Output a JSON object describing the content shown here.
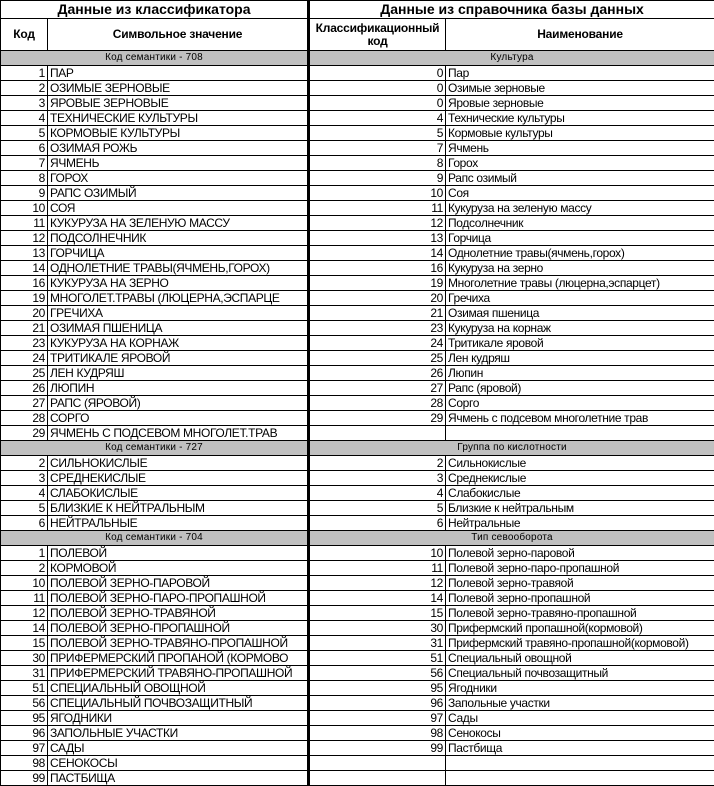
{
  "header": {
    "left_title": "Данные из классификатора",
    "right_title": "Данные из справочника базы данных",
    "col_code": "Код",
    "col_symbolic": "Символьное значение",
    "col_class_code": "Классификационный код",
    "col_name": "Наименование"
  },
  "colors": {
    "section_bg": "#c0c0c0",
    "border": "#000000"
  },
  "sections": [
    {
      "left_title": "Код семантики - 708",
      "right_title": "Культура",
      "rows": [
        [
          "1",
          "ПАР",
          "0",
          "Пар"
        ],
        [
          "2",
          "ОЗИМЫЕ ЗЕРНОВЫЕ",
          "0",
          "Озимые зерновые"
        ],
        [
          "3",
          "ЯРОВЫЕ ЗЕРНОВЫЕ",
          "0",
          "Яровые зерновые"
        ],
        [
          "4",
          "ТЕХНИЧЕСКИЕ КУЛЬТУРЫ",
          "4",
          "Технические культуры"
        ],
        [
          "5",
          "КОРМОВЫЕ КУЛЬТУРЫ",
          "5",
          "Кормовые культуры"
        ],
        [
          "6",
          "ОЗИМАЯ РОЖЬ",
          "7",
          "Ячмень"
        ],
        [
          "7",
          "ЯЧМЕНЬ",
          "8",
          "Горох"
        ],
        [
          "8",
          "ГОРОХ",
          "9",
          "Рапс озимый"
        ],
        [
          "9",
          "РАПС ОЗИМЫЙ",
          "10",
          "Соя"
        ],
        [
          "10",
          "СОЯ",
          "11",
          "Кукуруза на зеленую массу"
        ],
        [
          "11",
          "КУКУРУЗА НА ЗЕЛЕНУЮ МАССУ",
          "12",
          "Подсолнечник"
        ],
        [
          "12",
          "ПОДСОЛНЕЧНИК",
          "13",
          "Горчица"
        ],
        [
          "13",
          "ГОРЧИЦА",
          "14",
          "Однолетние травы(ячмень,горох)"
        ],
        [
          "14",
          "ОДНОЛЕТНИЕ ТРАВЫ(ЯЧМЕНЬ,ГОРОХ)",
          "16",
          "Кукуруза на зерно"
        ],
        [
          "16",
          "КУКУРУЗА НА ЗЕРНО",
          "19",
          "Многолетние травы (люцерна,эспарцет)"
        ],
        [
          "19",
          "МНОГОЛЕТ.ТРАВЫ (ЛЮЦЕРНА,ЭСПАРЦЕ",
          "20",
          "Гречиха"
        ],
        [
          "20",
          "ГРЕЧИХА",
          "21",
          "Озимая пшеница"
        ],
        [
          "21",
          "ОЗИМАЯ ПШЕНИЦА",
          "23",
          "Кукуруза на корнаж"
        ],
        [
          "23",
          "КУКУРУЗА НА КОРНАЖ",
          "24",
          "Тритикале яровой"
        ],
        [
          "24",
          "ТРИТИКАЛЕ ЯРОВОЙ",
          "25",
          "Лен кудряш"
        ],
        [
          "25",
          "ЛЕН КУДРЯШ",
          "26",
          "Люпин"
        ],
        [
          "26",
          "ЛЮПИН",
          "27",
          "Рапс (яровой)"
        ],
        [
          "27",
          "РАПС (ЯРОВОЙ)",
          "28",
          "Сорго"
        ],
        [
          "28",
          "СОРГО",
          "29",
          "Ячмень с подсевом многолетние трав"
        ],
        [
          "29",
          "ЯЧМЕНЬ С ПОДСЕВОМ МНОГОЛЕТ.ТРАВ",
          "",
          ""
        ]
      ]
    },
    {
      "left_title": "Код семантики - 727",
      "right_title": "Группа по кислотности",
      "rows": [
        [
          "2",
          "СИЛЬНОКИСЛЫЕ",
          "2",
          "Сильнокислые"
        ],
        [
          "3",
          "СРЕДНЕКИСЛЫЕ",
          "3",
          "Среднекислые"
        ],
        [
          "4",
          "СЛАБОКИСЛЫЕ",
          "4",
          "Слабокислые"
        ],
        [
          "5",
          "БЛИЗКИЕ К НЕЙТРАЛЬНЫМ",
          "5",
          "Близкие к нейтральным"
        ],
        [
          "6",
          "НЕЙТРАЛЬНЫЕ",
          "6",
          "Нейтральные"
        ]
      ]
    },
    {
      "left_title": "Код семантики - 704",
      "right_title": "Тип севооборота",
      "rows": [
        [
          "1",
          "ПОЛЕВОЙ",
          "10",
          "Полевой зерно-паровой"
        ],
        [
          "2",
          "КОРМОВОЙ",
          "11",
          "Полевой зерно-паро-пропашной"
        ],
        [
          "10",
          "ПОЛЕВОЙ ЗЕРНО-ПАРОВОЙ",
          "12",
          "Полевой зерно-травяой"
        ],
        [
          "11",
          "ПОЛЕВОЙ ЗЕРНО-ПАРО-ПРОПАШНОЙ",
          "14",
          "Полевой зерно-пропашной"
        ],
        [
          "12",
          "ПОЛЕВОЙ ЗЕРНО-ТРАВЯНОЙ",
          "15",
          "Полевой зерно-травяно-пропашной"
        ],
        [
          "14",
          "ПОЛЕВОЙ ЗЕРНО-ПРОПАШНОЙ",
          "30",
          "Прифермский пропашной(кормовой)"
        ],
        [
          "15",
          "ПОЛЕВОЙ ЗЕРНО-ТРАВЯНО-ПРОПАШНОЙ",
          "31",
          "Прифермский травяно-пропашной(кормовой)"
        ],
        [
          "30",
          "ПРИФЕРМЕРСКИЙ ПРОПАНОЙ (КОРМОВО",
          "51",
          "Специальный овощной"
        ],
        [
          "31",
          "ПРИФЕРМЕРСКИЙ ТРАВЯНО-ПРОПАШНОЙ",
          "56",
          "Специальный почвозащитный"
        ],
        [
          "51",
          "СПЕЦИАЛЬНЫЙ ОВОЩНОЙ",
          "95",
          "Ягодники"
        ],
        [
          "56",
          "СПЕЦИАЛЬНЫЙ ПОЧВОЗАЩИТНЫЙ",
          "96",
          "Запольные участки"
        ],
        [
          "95",
          "ЯГОДНИКИ",
          "97",
          "Сады"
        ],
        [
          "96",
          "ЗАПОЛЬНЫЕ УЧАСТКИ",
          "98",
          "Сенокосы"
        ],
        [
          "97",
          "САДЫ",
          "99",
          "Пастбища"
        ],
        [
          "98",
          "СЕНОКОСЫ",
          "",
          ""
        ],
        [
          "99",
          "ПАСТБИЩА",
          "",
          ""
        ]
      ]
    }
  ]
}
